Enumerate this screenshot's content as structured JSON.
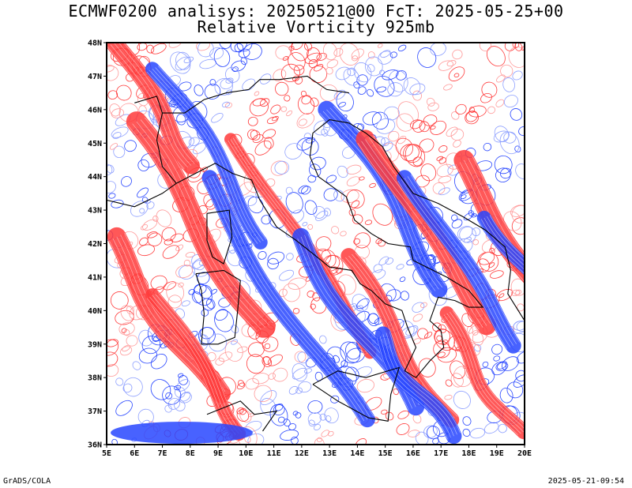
{
  "title_line1": "ECMWF0200 analisys: 20250521@00 FcT: 2025-05-25+00",
  "title_line2": "Relative Vorticity 925mb",
  "footer_left": "GrADS/COLA",
  "footer_right": "2025-05-21-09:54",
  "map": {
    "lon_range": [
      5,
      20
    ],
    "lat_range": [
      36,
      48
    ],
    "lon_ticks": [
      "5E",
      "6E",
      "7E",
      "8E",
      "9E",
      "10E",
      "11E",
      "12E",
      "13E",
      "14E",
      "15E",
      "16E",
      "17E",
      "18E",
      "19E",
      "20E"
    ],
    "lat_ticks": [
      "36N",
      "37N",
      "38N",
      "39N",
      "40N",
      "41N",
      "42N",
      "43N",
      "44N",
      "45N",
      "46N",
      "47N",
      "48N"
    ],
    "colors": {
      "positive": "#ff3b3b",
      "positive_light": "#ff9a9a",
      "negative": "#2846ff",
      "negative_light": "#8ea0ff",
      "coast": "#000000",
      "background": "#ffffff"
    }
  }
}
